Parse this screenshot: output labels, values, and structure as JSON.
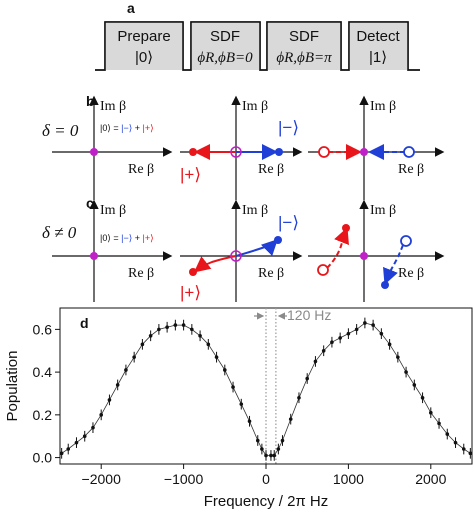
{
  "panel_a": {
    "label": "a",
    "boxes": [
      {
        "line1": "Prepare",
        "line2": "|0⟩"
      },
      {
        "line1": "SDF",
        "line2": "ϕR,ϕB=0"
      },
      {
        "line1": "SDF",
        "line2": "ϕR,ϕB=π"
      },
      {
        "line1": "Detect",
        "line2": "|1⟩"
      }
    ]
  },
  "panel_b": {
    "label": "b",
    "condition": "δ = 0",
    "formula": "|0⟩ = |−⟩ + |+⟩",
    "axis_y": "Im β",
    "axis_x": "Re β",
    "ket_minus": "|−⟩",
    "ket_plus": "|+⟩"
  },
  "panel_c": {
    "label": "c",
    "condition": "δ ≠ 0",
    "formula": "|0⟩ = |−⟩ + |+⟩",
    "axis_y": "Im β",
    "axis_x": "Re β",
    "ket_minus": "|−⟩",
    "ket_plus": "|+⟩"
  },
  "colors": {
    "minus": "#1f3fd6",
    "plus": "#e8161b",
    "origin": "#c020c8",
    "box": "#d9d9d9",
    "marker": "#9a9a9a"
  },
  "chart_data": {
    "type": "scatter",
    "panel_label": "d",
    "annotation": "120 Hz",
    "xlabel": "Frequency / 2π Hz",
    "ylabel": "Population",
    "xlim": [
      -2500,
      2500
    ],
    "ylim": [
      -0.03,
      0.7
    ],
    "xticks": [
      -2000,
      -1000,
      0,
      1000,
      2000
    ],
    "yticks": [
      0.0,
      0.2,
      0.4,
      0.6
    ],
    "xtick_labels": [
      "−2000",
      "−1000",
      "0",
      "1000",
      "2000"
    ],
    "ytick_labels": [
      "0.0",
      "0.2",
      "0.4",
      "0.6"
    ],
    "markers_x": [
      0,
      120
    ],
    "series": [
      {
        "x": [
          -2480,
          -2400,
          -2300,
          -2200,
          -2100,
          -2000,
          -1900,
          -1800,
          -1700,
          -1600,
          -1500,
          -1400,
          -1300,
          -1200,
          -1100,
          -1000,
          -900,
          -800,
          -700,
          -600,
          -500,
          -400,
          -300,
          -200,
          -100,
          -50,
          0,
          60,
          100,
          150,
          200,
          300,
          400,
          500,
          600,
          700,
          800,
          900,
          1000,
          1100,
          1200,
          1300,
          1400,
          1500,
          1600,
          1700,
          1800,
          1900,
          2000,
          2100,
          2200,
          2300,
          2400,
          2480
        ],
        "y": [
          0.02,
          0.04,
          0.07,
          0.1,
          0.14,
          0.2,
          0.27,
          0.34,
          0.41,
          0.47,
          0.53,
          0.57,
          0.6,
          0.61,
          0.62,
          0.62,
          0.6,
          0.57,
          0.53,
          0.47,
          0.41,
          0.33,
          0.25,
          0.17,
          0.08,
          0.04,
          0.01,
          0.01,
          0.01,
          0.04,
          0.08,
          0.18,
          0.28,
          0.37,
          0.45,
          0.5,
          0.54,
          0.56,
          0.58,
          0.6,
          0.63,
          0.62,
          0.58,
          0.53,
          0.47,
          0.4,
          0.34,
          0.28,
          0.21,
          0.16,
          0.11,
          0.07,
          0.04,
          0.02
        ],
        "error": 0.025
      }
    ]
  }
}
